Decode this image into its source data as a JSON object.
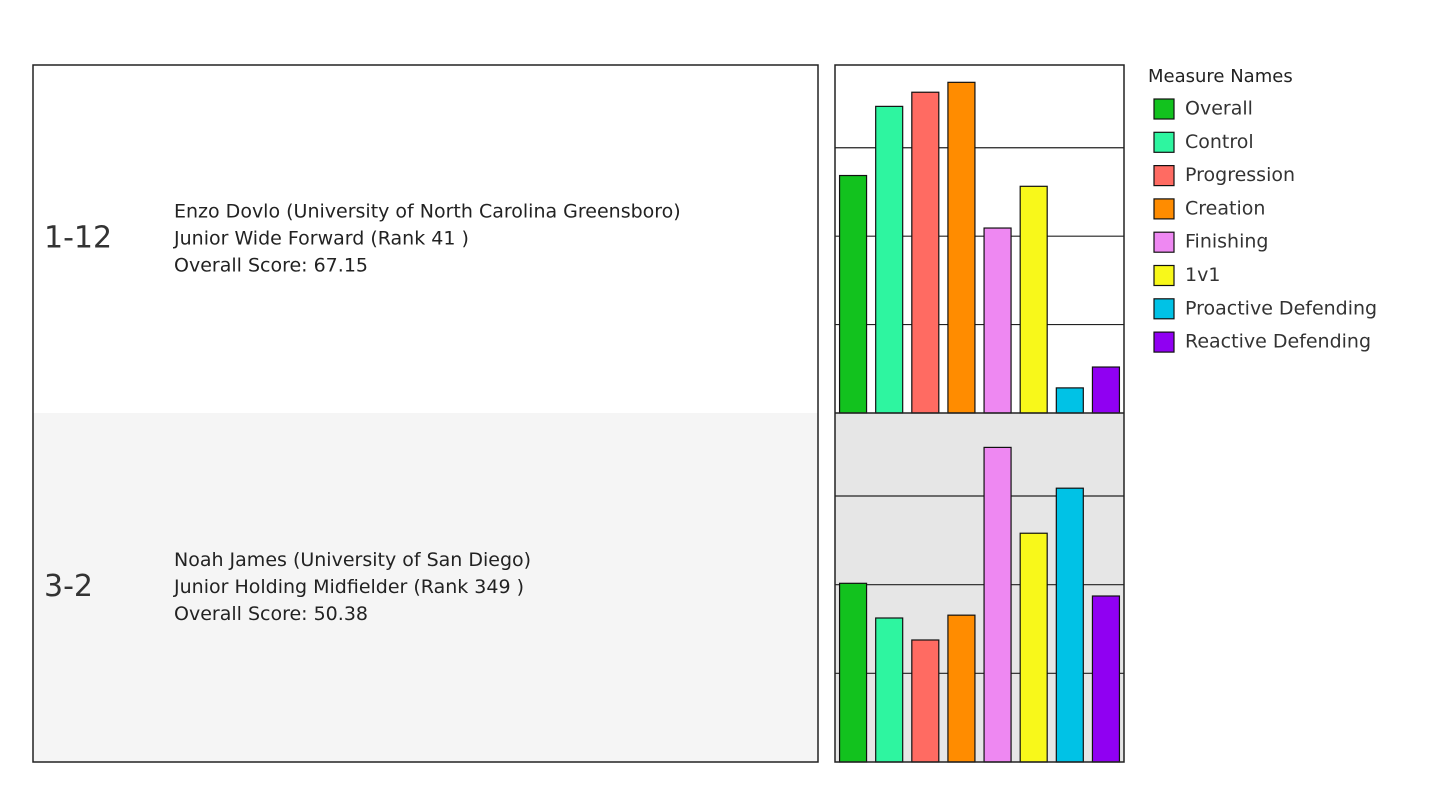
{
  "rows": [
    {
      "label": "1-12",
      "lines": [
        "Enzo Dovlo (University of North Carolina Greensboro)",
        "Junior Wide Forward  (Rank 41 )",
        "Overall Score: 67.15"
      ]
    },
    {
      "label": "3-2",
      "lines": [
        "Noah James (University of San Diego)",
        "Junior Holding Midfielder  (Rank 349 )",
        "Overall Score: 50.38"
      ]
    }
  ],
  "legend": {
    "title": "Measure Names",
    "items": [
      {
        "name": "Overall",
        "color": "#12c21e"
      },
      {
        "name": "Control",
        "color": "#2ef5a0"
      },
      {
        "name": "Progression",
        "color": "#ff6b62"
      },
      {
        "name": "Creation",
        "color": "#ff8c00"
      },
      {
        "name": "Finishing",
        "color": "#ee88f2"
      },
      {
        "name": "1v1",
        "color": "#f8f81a"
      },
      {
        "name": "Proactive Defending",
        "color": "#00c2e6"
      },
      {
        "name": "Reactive Defending",
        "color": "#9000f2"
      }
    ]
  },
  "chart_data": [
    {
      "type": "bar",
      "values": [
        67.15,
        86.7,
        90.7,
        93.5,
        52.3,
        64.1,
        7.1,
        13.0
      ],
      "ylim": [
        0,
        98.4
      ],
      "yticks": [
        25,
        50,
        75
      ],
      "grid": true
    },
    {
      "type": "bar",
      "values": [
        50.38,
        40.6,
        34.4,
        41.4,
        88.7,
        64.5,
        77.2,
        46.8
      ],
      "ylim": [
        0,
        98.4
      ],
      "yticks": [
        25,
        50,
        75
      ],
      "grid": true
    }
  ]
}
